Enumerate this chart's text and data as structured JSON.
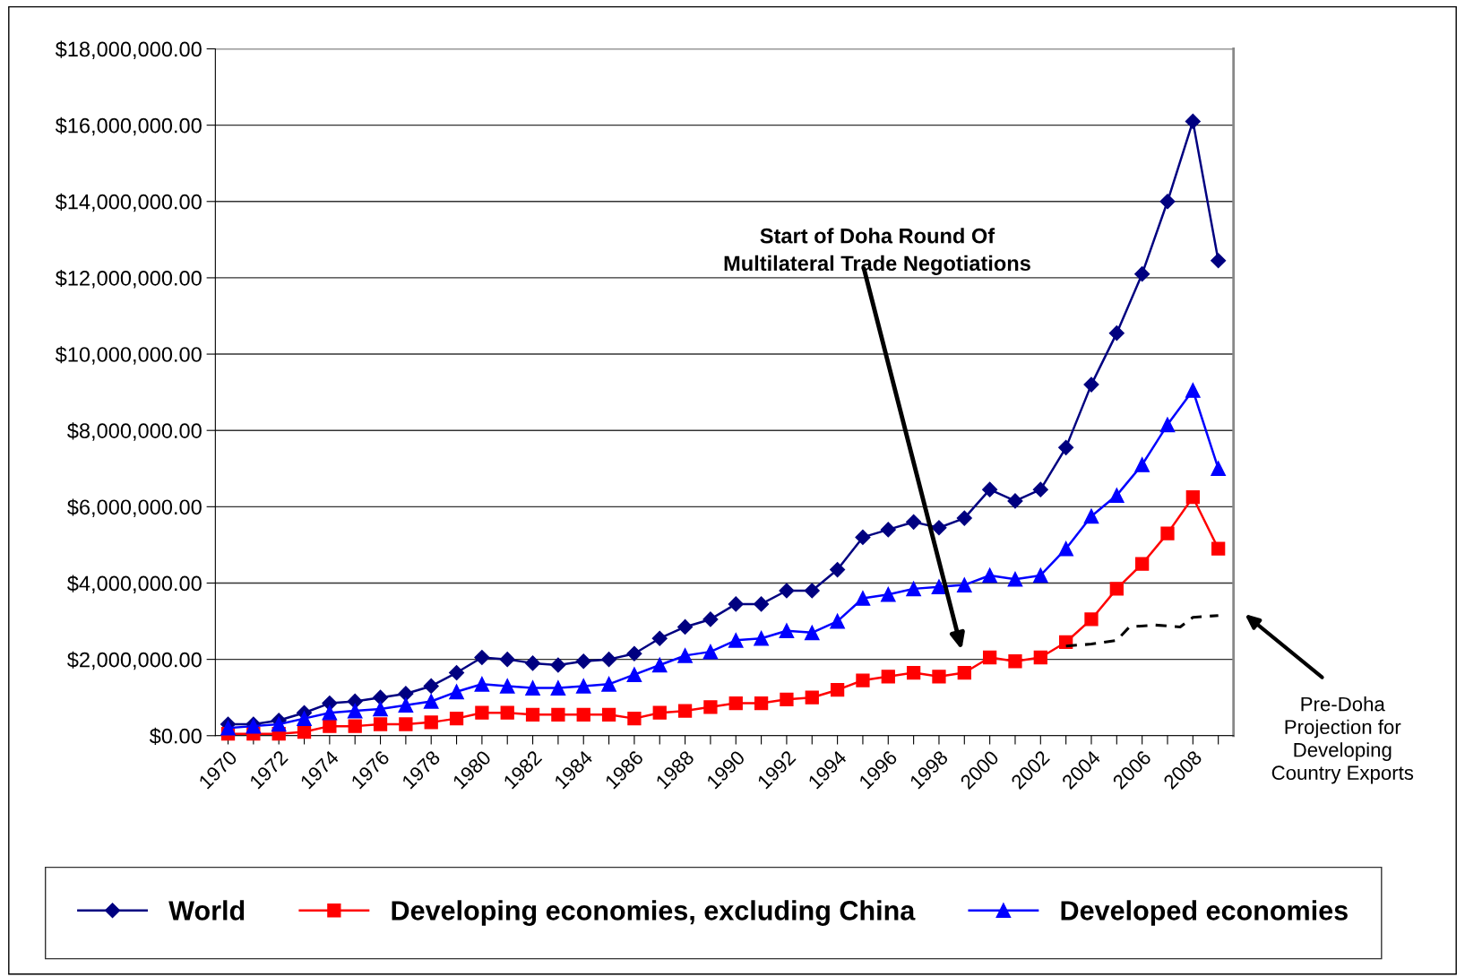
{
  "chart_data": {
    "type": "line",
    "x": [
      1970,
      1971,
      1972,
      1973,
      1974,
      1975,
      1976,
      1977,
      1978,
      1979,
      1980,
      1981,
      1982,
      1983,
      1984,
      1985,
      1986,
      1987,
      1988,
      1989,
      1990,
      1991,
      1992,
      1993,
      1994,
      1995,
      1996,
      1997,
      1998,
      1999,
      2000,
      2001,
      2002,
      2003,
      2004,
      2005,
      2006,
      2007,
      2008,
      2009
    ],
    "series": [
      {
        "name": "World",
        "color": "#000080",
        "marker": "diamond",
        "values": [
          300000,
          300000,
          400000,
          600000,
          850000,
          900000,
          1000000,
          1100000,
          1300000,
          1650000,
          2050000,
          2000000,
          1900000,
          1850000,
          1950000,
          2000000,
          2150000,
          2550000,
          2850000,
          3050000,
          3450000,
          3450000,
          3800000,
          3800000,
          4350000,
          5200000,
          5400000,
          5600000,
          5450000,
          5700000,
          6450000,
          6150000,
          6450000,
          7550000,
          9200000,
          10550000,
          12100000,
          14000000,
          16100000,
          12450000
        ]
      },
      {
        "name": "Developing economies, excluding China",
        "color": "#ff0000",
        "marker": "square",
        "values": [
          50000,
          50000,
          50000,
          100000,
          250000,
          250000,
          300000,
          300000,
          350000,
          450000,
          600000,
          600000,
          550000,
          550000,
          550000,
          550000,
          450000,
          600000,
          650000,
          750000,
          850000,
          850000,
          950000,
          1000000,
          1200000,
          1450000,
          1550000,
          1650000,
          1550000,
          1650000,
          2050000,
          1950000,
          2050000,
          2450000,
          3050000,
          3850000,
          4500000,
          5300000,
          6250000,
          4900000
        ]
      },
      {
        "name": "Developed economies",
        "color": "#0000ff",
        "marker": "triangle",
        "values": [
          200000,
          250000,
          300000,
          450000,
          600000,
          650000,
          700000,
          800000,
          900000,
          1150000,
          1350000,
          1300000,
          1250000,
          1250000,
          1300000,
          1350000,
          1600000,
          1850000,
          2100000,
          2200000,
          2500000,
          2550000,
          2750000,
          2700000,
          3000000,
          3600000,
          3700000,
          3850000,
          3900000,
          3950000,
          4200000,
          4100000,
          4200000,
          4900000,
          5750000,
          6300000,
          7100000,
          8150000,
          9050000,
          7000000
        ]
      },
      {
        "color": "#000000",
        "marker": "none",
        "line_style": "dashed",
        "x": [
          2003,
          2004,
          2005,
          2005.5,
          2006.5,
          2007.5,
          2008,
          2009
        ],
        "values": [
          2350000,
          2400000,
          2500000,
          2850000,
          2900000,
          2850000,
          3100000,
          3150000
        ]
      }
    ],
    "xlim": [
      1969.5,
      2009.6
    ],
    "xticks": [
      1970,
      {
        "value": 1971,
        "label": null
      },
      1972,
      {
        "value": 1973,
        "label": null
      },
      1974,
      {
        "value": 1975,
        "label": null
      },
      1976,
      {
        "value": 1977,
        "label": null
      },
      1978,
      {
        "value": 1979,
        "label": null
      },
      1980,
      {
        "value": 1981,
        "label": null
      },
      1982,
      {
        "value": 1983,
        "label": null
      },
      1984,
      {
        "value": 1985,
        "label": null
      },
      1986,
      {
        "value": 1987,
        "label": null
      },
      1988,
      {
        "value": 1989,
        "label": null
      },
      1990,
      {
        "value": 1991,
        "label": null
      },
      1992,
      {
        "value": 1993,
        "label": null
      },
      1994,
      {
        "value": 1995,
        "label": null
      },
      1996,
      {
        "value": 1997,
        "label": null
      },
      1998,
      {
        "value": 1999,
        "label": null
      },
      2000,
      {
        "value": 2001,
        "label": null
      },
      2002,
      {
        "value": 2003,
        "label": null
      },
      2004,
      {
        "value": 2005,
        "label": null
      },
      2006,
      {
        "value": 2007,
        "label": null
      },
      2008,
      {
        "value": 2009,
        "label": null
      }
    ],
    "ylim": [
      0,
      18000000
    ],
    "yticks": [
      {
        "value": 0,
        "label": "$0.00"
      },
      {
        "value": 2000000,
        "label": "$2,000,000.00"
      },
      {
        "value": 4000000,
        "label": "$4,000,000.00"
      },
      {
        "value": 6000000,
        "label": "$6,000,000.00"
      },
      {
        "value": 8000000,
        "label": "$8,000,000.00"
      },
      {
        "value": 10000000,
        "label": "$10,000,000.00"
      },
      {
        "value": 12000000,
        "label": "$12,000,000.00"
      },
      {
        "value": 14000000,
        "label": "$14,000,000.00"
      },
      {
        "value": 16000000,
        "label": "$16,000,000.00"
      },
      {
        "value": 18000000,
        "label": "$18,000,000.00"
      }
    ],
    "grid": "y",
    "legend": "bottom",
    "annotations": [
      "Start of Doha Round Of\nMultilateral Trade Negotiations",
      "Pre-Doha\nProjection for\nDeveloping\nCountry Exports"
    ]
  }
}
